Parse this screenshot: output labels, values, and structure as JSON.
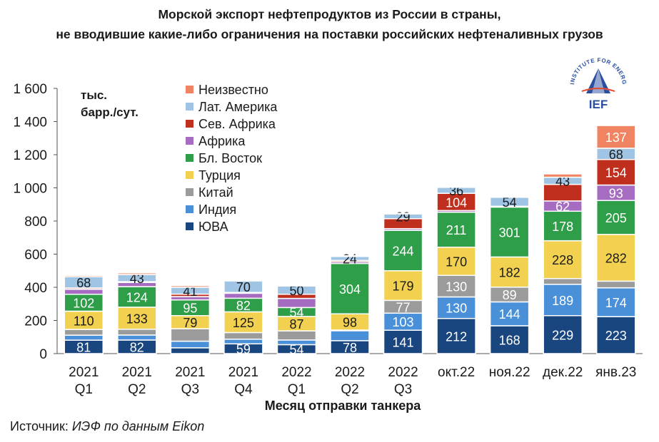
{
  "title_line1": "Морской экспорт нефтепродуктов из России в страны,",
  "title_line2": "не вводившие какие-либо ограничения на поставки российских нефтеналивных грузов",
  "source_prefix": "Источник: ",
  "source_text": "ИЭФ по данным Eikon",
  "logo": {
    "text": "IEF",
    "ring_text": "INSTITUTE FOR ENERGY AND FINANCE",
    "color": "#2a4fa0",
    "accent": "#e0513a"
  },
  "chart_data": {
    "type": "bar",
    "stacked": true,
    "title": "",
    "ylabel_lines": [
      "тыс.",
      "барр./сут."
    ],
    "xlabel": "Месяц отправки танкера",
    "ylim": [
      0,
      1600
    ],
    "yticks": [
      0,
      200,
      400,
      600,
      800,
      1000,
      1200,
      1400,
      1600
    ],
    "ytick_labels": [
      "0",
      "200",
      "400",
      "600",
      "800",
      "1 000",
      "1 200",
      "1 400",
      "1 600"
    ],
    "grid": false,
    "legend_position": "top-left",
    "categories": [
      [
        "2021",
        "Q1"
      ],
      [
        "2021",
        "Q2"
      ],
      [
        "2021",
        "Q3"
      ],
      [
        "2021",
        "Q4"
      ],
      [
        "2022",
        "Q1"
      ],
      [
        "2022",
        "Q2"
      ],
      [
        "2022",
        "Q3"
      ],
      [
        "окт.22"
      ],
      [
        "ноя.22"
      ],
      [
        "дек.22"
      ],
      [
        "янв.23"
      ]
    ],
    "series": [
      {
        "name": "ЮВА",
        "color": "#1a4680",
        "values": [
          81,
          82,
          35,
          59,
          54,
          78,
          141,
          212,
          168,
          229,
          223
        ],
        "labels": [
          true,
          true,
          false,
          true,
          true,
          true,
          true,
          true,
          true,
          true,
          true
        ]
      },
      {
        "name": "Индия",
        "color": "#4a90d9",
        "values": [
          30,
          30,
          40,
          28,
          28,
          60,
          103,
          130,
          144,
          189,
          174
        ],
        "labels": [
          false,
          false,
          false,
          false,
          false,
          false,
          true,
          true,
          true,
          true,
          true
        ]
      },
      {
        "name": "Китай",
        "color": "#9b9b9b",
        "values": [
          35,
          35,
          75,
          40,
          55,
          4,
          77,
          130,
          89,
          35,
          40
        ],
        "labels": [
          false,
          false,
          false,
          false,
          false,
          false,
          true,
          true,
          true,
          false,
          false
        ]
      },
      {
        "name": "Турция",
        "color": "#f2d150",
        "values": [
          110,
          133,
          79,
          125,
          87,
          98,
          179,
          170,
          182,
          228,
          282
        ],
        "labels": [
          true,
          true,
          true,
          true,
          true,
          true,
          true,
          true,
          true,
          true,
          true
        ]
      },
      {
        "name": "Бл. Восток",
        "color": "#2e9e49",
        "values": [
          102,
          124,
          95,
          82,
          54,
          304,
          244,
          211,
          301,
          178,
          205
        ],
        "labels": [
          true,
          true,
          true,
          true,
          true,
          true,
          true,
          true,
          true,
          true,
          true
        ]
      },
      {
        "name": "Африка",
        "color": "#a56cc1",
        "values": [
          30,
          25,
          20,
          30,
          55,
          10,
          10,
          10,
          5,
          62,
          93
        ],
        "labels": [
          false,
          false,
          false,
          false,
          false,
          false,
          false,
          false,
          false,
          true,
          true
        ]
      },
      {
        "name": "Сев. Африка",
        "color": "#c02f1d",
        "values": [
          8,
          5,
          15,
          5,
          25,
          8,
          60,
          104,
          0,
          100,
          154
        ],
        "labels": [
          false,
          false,
          false,
          false,
          false,
          false,
          false,
          true,
          false,
          false,
          true
        ]
      },
      {
        "name": "Лат. Америка",
        "color": "#9fc4e4",
        "values": [
          68,
          43,
          41,
          70,
          50,
          24,
          29,
          36,
          54,
          43,
          68
        ],
        "labels": [
          true,
          true,
          true,
          true,
          true,
          true,
          true,
          true,
          true,
          true,
          true
        ]
      },
      {
        "name": "Неизвестно",
        "color": "#f08462",
        "values": [
          8,
          10,
          10,
          3,
          5,
          5,
          3,
          5,
          3,
          20,
          137
        ],
        "labels": [
          false,
          false,
          false,
          false,
          false,
          false,
          false,
          false,
          false,
          false,
          true
        ]
      }
    ]
  }
}
